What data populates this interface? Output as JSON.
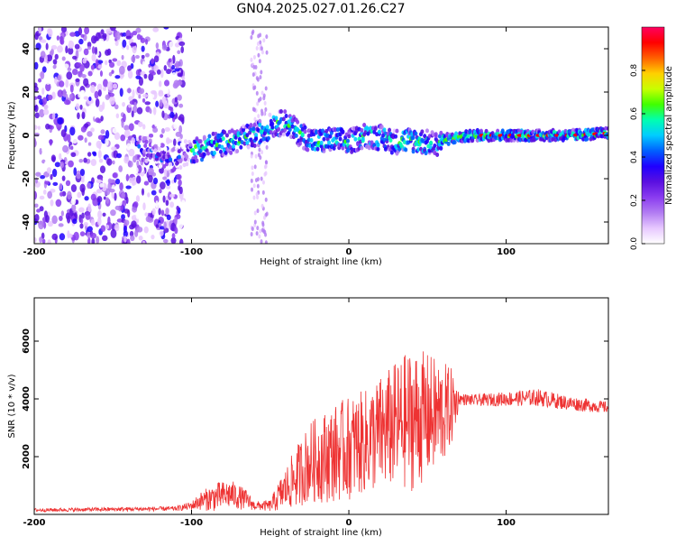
{
  "title": "GN04.2025.027.01.26.C27",
  "colors": {
    "snr_line": "#ee3333",
    "colormap": [
      "#ffffff",
      "#e7c8ff",
      "#b27cf2",
      "#8a3cf0",
      "#5a10e0",
      "#1f00ff",
      "#0060ff",
      "#00ccff",
      "#00ffb0",
      "#40ff00",
      "#c8ff00",
      "#ffd000",
      "#ff6000",
      "#ff0000",
      "#ff0060"
    ]
  },
  "chart_data": [
    {
      "type": "heatmap",
      "xlabel": "Height of straight line (km)",
      "ylabel": "Frequency (Hz)",
      "xlim": [
        -200,
        165
      ],
      "ylim": [
        -50,
        50
      ],
      "xticks": [
        -200,
        -100,
        0,
        100
      ],
      "yticks": [
        -40,
        -20,
        0,
        20,
        40
      ],
      "colorbar": {
        "label": "Normalized spectral amplitude",
        "range": [
          0.0,
          1.0
        ],
        "ticks": [
          "0.0",
          "0.2",
          "0.4",
          "0.6",
          "0.8"
        ]
      },
      "ridge": {
        "x": [
          -200,
          -150,
          -125,
          -115,
          -100,
          -90,
          -75,
          -60,
          -48,
          -40,
          -30,
          -20,
          -10,
          0,
          10,
          20,
          30,
          40,
          55,
          60,
          80,
          100,
          120,
          140,
          165
        ],
        "y": [
          0,
          0,
          -8,
          -12,
          -7,
          -5,
          -3,
          0,
          5,
          6,
          0,
          -3,
          -2,
          -3,
          0,
          -1,
          -3,
          -2,
          -4,
          -2,
          0,
          0,
          0,
          0,
          1
        ]
      }
    },
    {
      "type": "line",
      "xlabel": "Height of straight line (km)",
      "ylabel": "SNR (10 * v/v)",
      "xlim": [
        -200,
        165
      ],
      "ylim": [
        0,
        7500
      ],
      "xticks": [
        -200,
        -100,
        0,
        100
      ],
      "yticks": [
        2000,
        4000,
        6000
      ],
      "envelope": {
        "x": [
          -200,
          -110,
          -100,
          -95,
          -85,
          -75,
          -65,
          -60,
          -50,
          -45,
          -35,
          -25,
          -15,
          0,
          10,
          20,
          30,
          40,
          50,
          60,
          67,
          70,
          80,
          100,
          120,
          140,
          165
        ],
        "baseline": [
          150,
          200,
          300,
          450,
          600,
          700,
          500,
          300,
          300,
          600,
          1200,
          1800,
          2000,
          2300,
          2500,
          2800,
          3100,
          3300,
          3400,
          3500,
          3800,
          4000,
          3950,
          4000,
          4050,
          3850,
          3700
        ],
        "spread": [
          60,
          80,
          150,
          300,
          500,
          500,
          350,
          150,
          200,
          500,
          1000,
          1400,
          1600,
          1800,
          1800,
          2000,
          2200,
          2500,
          2200,
          1800,
          1200,
          200,
          200,
          250,
          300,
          250,
          200
        ]
      }
    }
  ]
}
